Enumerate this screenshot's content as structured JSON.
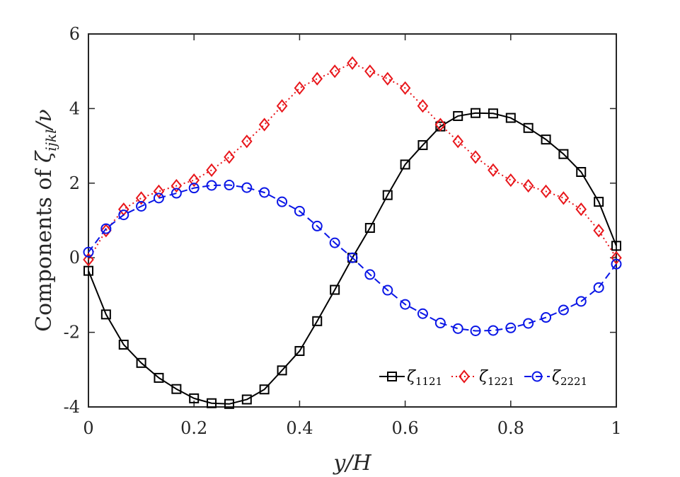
{
  "chart_data": {
    "type": "line",
    "xlabel": "y/H",
    "ylabel_prefix": "Components of ",
    "ylabel_math": "ζ",
    "ylabel_sub": "ijkl",
    "ylabel_suffix": "/ν",
    "xlim": [
      0,
      1
    ],
    "ylim": [
      -4,
      6
    ],
    "xticks": [
      0,
      0.2,
      0.4,
      0.6,
      0.8,
      1
    ],
    "xtick_labels": [
      "0",
      "0.2",
      "0.4",
      "0.6",
      "0.8",
      "1"
    ],
    "yticks": [
      -4,
      -2,
      0,
      2,
      4,
      6
    ],
    "ytick_labels": [
      "-4",
      "-2",
      "0",
      "2",
      "4",
      "6"
    ],
    "grid": false,
    "legend_position": "bottom-right",
    "x": [
      0,
      0.0333,
      0.0667,
      0.1,
      0.1333,
      0.1667,
      0.2,
      0.2333,
      0.2667,
      0.3,
      0.3333,
      0.3667,
      0.4,
      0.4333,
      0.4667,
      0.5,
      0.5333,
      0.5667,
      0.6,
      0.6333,
      0.6667,
      0.7,
      0.7333,
      0.7667,
      0.8,
      0.8333,
      0.8667,
      0.9,
      0.9333,
      0.9667,
      1
    ],
    "series": [
      {
        "name": "ζ1121",
        "label_symbol": "ζ",
        "label_sub": "1121",
        "color": "#000000",
        "marker": "square",
        "line": "solid",
        "values": [
          -0.35,
          -1.52,
          -2.33,
          -2.82,
          -3.22,
          -3.52,
          -3.77,
          -3.9,
          -3.92,
          -3.8,
          -3.53,
          -3.02,
          -2.5,
          -1.7,
          -0.86,
          0.0,
          0.8,
          1.68,
          2.5,
          3.02,
          3.52,
          3.8,
          3.88,
          3.87,
          3.75,
          3.48,
          3.17,
          2.78,
          2.3,
          1.5,
          0.32
        ]
      },
      {
        "name": "ζ1221",
        "label_symbol": "ζ",
        "label_sub": "1221",
        "color": "#e8161b",
        "marker": "diamond",
        "line": "dotted",
        "values": [
          -0.05,
          0.73,
          1.3,
          1.6,
          1.78,
          1.93,
          2.08,
          2.35,
          2.7,
          3.12,
          3.57,
          4.07,
          4.55,
          4.8,
          5.0,
          5.22,
          5.0,
          4.8,
          4.55,
          4.07,
          3.57,
          3.12,
          2.7,
          2.35,
          2.08,
          1.93,
          1.78,
          1.6,
          1.3,
          0.73,
          0.0
        ]
      },
      {
        "name": "ζ2221",
        "label_symbol": "ζ",
        "label_sub": "2221",
        "color": "#0a16e6",
        "marker": "circle",
        "line": "dashed",
        "values": [
          0.15,
          0.78,
          1.15,
          1.38,
          1.6,
          1.73,
          1.87,
          1.94,
          1.95,
          1.88,
          1.75,
          1.5,
          1.25,
          0.85,
          0.4,
          0.0,
          -0.45,
          -0.87,
          -1.25,
          -1.5,
          -1.75,
          -1.9,
          -1.96,
          -1.95,
          -1.88,
          -1.76,
          -1.6,
          -1.4,
          -1.17,
          -0.8,
          -0.17
        ]
      }
    ]
  }
}
